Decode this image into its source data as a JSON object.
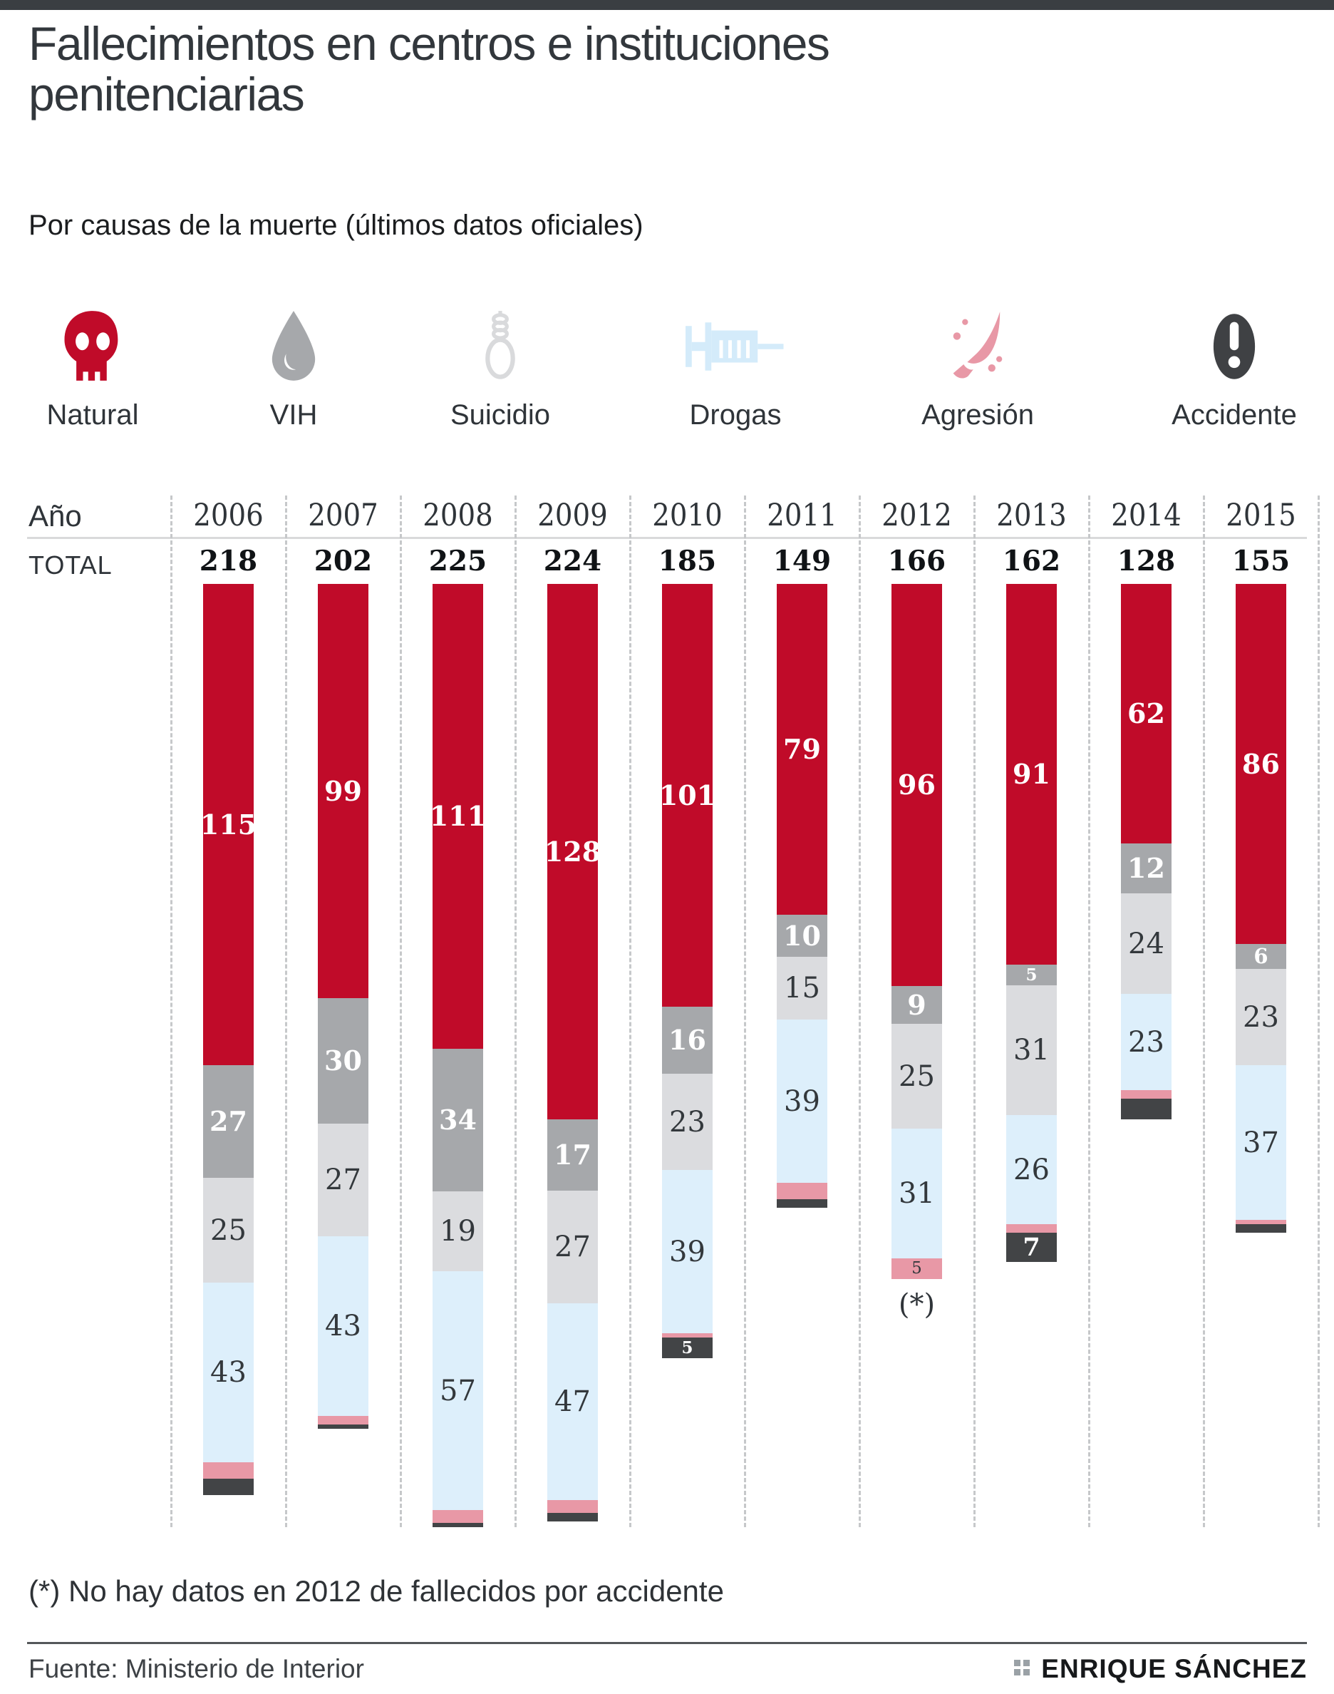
{
  "title": "Fallecimientos  en centros e instituciones penitenciarias",
  "subtitle": "Por causas de la muerte (últimos datos oficiales)",
  "legend": {
    "items": [
      {
        "label": "Natural",
        "icon": "skull-icon",
        "color": "#c00b29"
      },
      {
        "label": "VIH",
        "icon": "drop-icon",
        "color": "#a6a8ab"
      },
      {
        "label": "Suicidio",
        "icon": "noose-icon",
        "color": "#d9dadc"
      },
      {
        "label": "Drogas",
        "icon": "syringe-icon",
        "color": "#d4ebfa"
      },
      {
        "label": "Agresión",
        "icon": "knife-icon",
        "color": "#e898a6"
      },
      {
        "label": "Accidente",
        "icon": "exclamation-icon",
        "color": "#3f4144"
      }
    ]
  },
  "table": {
    "year_label": "Año",
    "total_label": "TOTAL"
  },
  "chart_data": {
    "type": "bar",
    "stacked": true,
    "direction": "top-down",
    "grid": "dashed-column-separators",
    "categories": [
      "2006",
      "2007",
      "2008",
      "2009",
      "2010",
      "2011",
      "2012",
      "2013",
      "2014",
      "2015"
    ],
    "totals": [
      218,
      202,
      225,
      224,
      185,
      149,
      166,
      162,
      128,
      155
    ],
    "series": [
      {
        "name": "Natural",
        "color": "#c00b29",
        "label_style": "light",
        "values": [
          115,
          99,
          111,
          128,
          101,
          79,
          96,
          91,
          62,
          86
        ],
        "labels": [
          "115",
          "99",
          "111",
          "128",
          "101",
          "79",
          "96",
          "91",
          "62",
          "86"
        ]
      },
      {
        "name": "VIH",
        "color": "#a6a8ab",
        "label_style": "light",
        "values": [
          27,
          30,
          34,
          17,
          16,
          10,
          9,
          5,
          12,
          6
        ],
        "labels": [
          "27",
          "30",
          "34",
          "17",
          "16",
          "10",
          "9",
          "5",
          "12",
          "6"
        ]
      },
      {
        "name": "Suicidio",
        "color": "#dbdcdf",
        "label_style": "dark",
        "values": [
          25,
          27,
          19,
          27,
          23,
          15,
          25,
          31,
          24,
          23
        ],
        "labels": [
          "25",
          "27",
          "19",
          "27",
          "23",
          "15",
          "25",
          "31",
          "24",
          "23"
        ]
      },
      {
        "name": "Drogas",
        "color": "#ddeffb",
        "label_style": "dark",
        "values": [
          43,
          43,
          57,
          47,
          39,
          39,
          31,
          26,
          23,
          37
        ],
        "labels": [
          "43",
          "43",
          "57",
          "47",
          "39",
          "39",
          "31",
          "26",
          "23",
          "37"
        ]
      },
      {
        "name": "Agresión",
        "color": "#e898a6",
        "label_style": "dark",
        "values": [
          4,
          2,
          3,
          3,
          1,
          4,
          5,
          2,
          2,
          1
        ],
        "labels": [
          "",
          "",
          "",
          "",
          "",
          "",
          "5",
          "",
          "",
          ""
        ]
      },
      {
        "name": "Accidente",
        "color": "#424446",
        "label_style": "light",
        "values": [
          4,
          1,
          1,
          2,
          5,
          2,
          0,
          7,
          5,
          2
        ],
        "labels": [
          "",
          "",
          "",
          "",
          "5",
          "",
          "",
          "7",
          "",
          ""
        ]
      }
    ],
    "footnote_column": "2012",
    "footnote_mark": "(*)"
  },
  "footnote": "(*) No hay datos en 2012 de fallecidos por accidente",
  "source": "Fuente: Ministerio de Interior",
  "credit": "ENRIQUE SÁNCHEZ"
}
